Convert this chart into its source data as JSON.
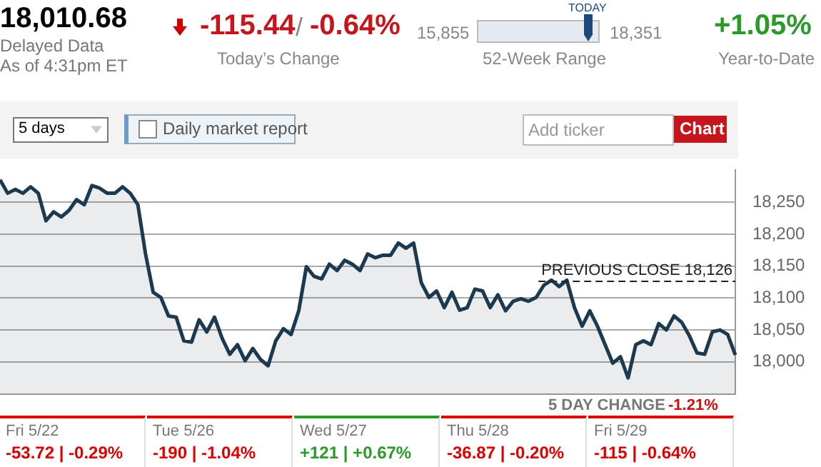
{
  "chart_data": {
    "type": "area",
    "categories": [
      null,
      null,
      null,
      null,
      null,
      null,
      null,
      null,
      null,
      null,
      null,
      null,
      null,
      null,
      null,
      null,
      null,
      null,
      null,
      null,
      null,
      null,
      null,
      null,
      null,
      null,
      null,
      null,
      null,
      null,
      null,
      null,
      null,
      null,
      null,
      null,
      null,
      null,
      null,
      null,
      null,
      null,
      null,
      null,
      null,
      null,
      null,
      null,
      null,
      null,
      null,
      null,
      null,
      null,
      null,
      null,
      null,
      null,
      null,
      null,
      null,
      null,
      null,
      null,
      null,
      null,
      null,
      null,
      null,
      null,
      null,
      null,
      null,
      null,
      null,
      null,
      null,
      null,
      null,
      null,
      null,
      null,
      null,
      null,
      null,
      null,
      null,
      null,
      null,
      null,
      null,
      null,
      null,
      null,
      null,
      null,
      null
    ],
    "series": [
      {
        "color": "#1c3a4f",
        "values": [
          18285,
          18264,
          18270,
          18264,
          18274,
          18264,
          18221,
          18235,
          18227,
          18237,
          18254,
          18246,
          18276,
          18272,
          18264,
          18264,
          18274,
          18264,
          18246,
          18169,
          18109,
          18101,
          18072,
          18070,
          18033,
          18031,
          18066,
          18047,
          18070,
          18037,
          18012,
          18027,
          18002,
          18021,
          18004,
          17994,
          18033,
          18052,
          18043,
          18080,
          18149,
          18134,
          18130,
          18153,
          18143,
          18159,
          18153,
          18143,
          18169,
          18163,
          18167,
          18167,
          18186,
          18178,
          18186,
          18124,
          18101,
          18111,
          18085,
          18109,
          18081,
          18085,
          18114,
          18111,
          18085,
          18105,
          18080,
          18095,
          18099,
          18095,
          18101,
          18120,
          18128,
          18118,
          18128,
          18085,
          18056,
          18080,
          18056,
          18027,
          17998,
          18008,
          17975,
          18027,
          18033,
          18027,
          18060,
          18050,
          18072,
          18062,
          18041,
          18014,
          18012,
          18047,
          18050,
          18043,
          18011
        ]
      }
    ],
    "ylim": [
      17950,
      18300
    ],
    "yticks": [
      {
        "value": 18000,
        "label": "18,000"
      },
      {
        "value": 18050,
        "label": "18,050"
      },
      {
        "value": 18100,
        "label": "18,100"
      },
      {
        "value": 18150,
        "label": "18,150"
      },
      {
        "value": 18200,
        "label": "18,200"
      },
      {
        "value": 18250,
        "label": "18,250"
      }
    ],
    "tick_labels": "y",
    "grid": "y",
    "legend": false,
    "marker": "none",
    "line_style": "solid",
    "ref_lines": [
      {
        "axis": "y",
        "value": 18126,
        "label": "PREVIOUS CLOSE 18,126",
        "line_style": "dashed",
        "color": "#222222"
      }
    ],
    "annotations": [
      "18,010.68",
      "Delayed Data",
      "As of 4:31pm ET",
      "-115.44",
      "/",
      "-0.64%",
      "Today’s Change",
      "15,855",
      "TODAY",
      "18,351",
      "52-Week Range",
      "+1.05%",
      "Year-to-Date",
      "5 days",
      "Daily market report",
      "Add ticker",
      "Chart",
      "5 DAY CHANGE",
      "-1.21%",
      "Fri 5/22",
      "-53.72 | -0.29%",
      "Tue 5/26",
      "-190 | -1.04%",
      "Wed 5/27",
      "+121 | +0.67%",
      "Thu 5/28",
      "-36.87 | -0.20%",
      "Fri 5/29",
      "-115 | -0.64%"
    ]
  }
}
